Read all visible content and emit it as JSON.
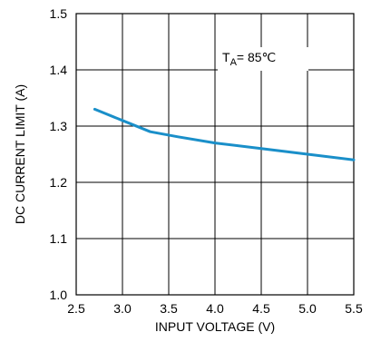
{
  "chart_data": {
    "type": "line",
    "xlabel": "INPUT VOLTAGE (V)",
    "ylabel": "DC CURRENT LIMIT (A)",
    "xlim": [
      2.5,
      5.5
    ],
    "ylim": [
      1.0,
      1.5
    ],
    "x_ticks": [
      "2.5",
      "3.0",
      "3.5",
      "4.0",
      "4.5",
      "5.0",
      "5.5"
    ],
    "y_ticks": [
      "1.0",
      "1.1",
      "1.2",
      "1.3",
      "1.4",
      "1.5"
    ],
    "grid": true,
    "annotation": {
      "prefix": "T",
      "subscript": "A",
      "suffix": "= 85℃"
    },
    "series": [
      {
        "color": "#1a8fc9",
        "x": [
          2.7,
          3.0,
          3.3,
          3.6,
          4.0,
          4.5,
          5.0,
          5.5
        ],
        "y": [
          1.33,
          1.31,
          1.29,
          1.281,
          1.27,
          1.26,
          1.25,
          1.24
        ]
      }
    ]
  }
}
